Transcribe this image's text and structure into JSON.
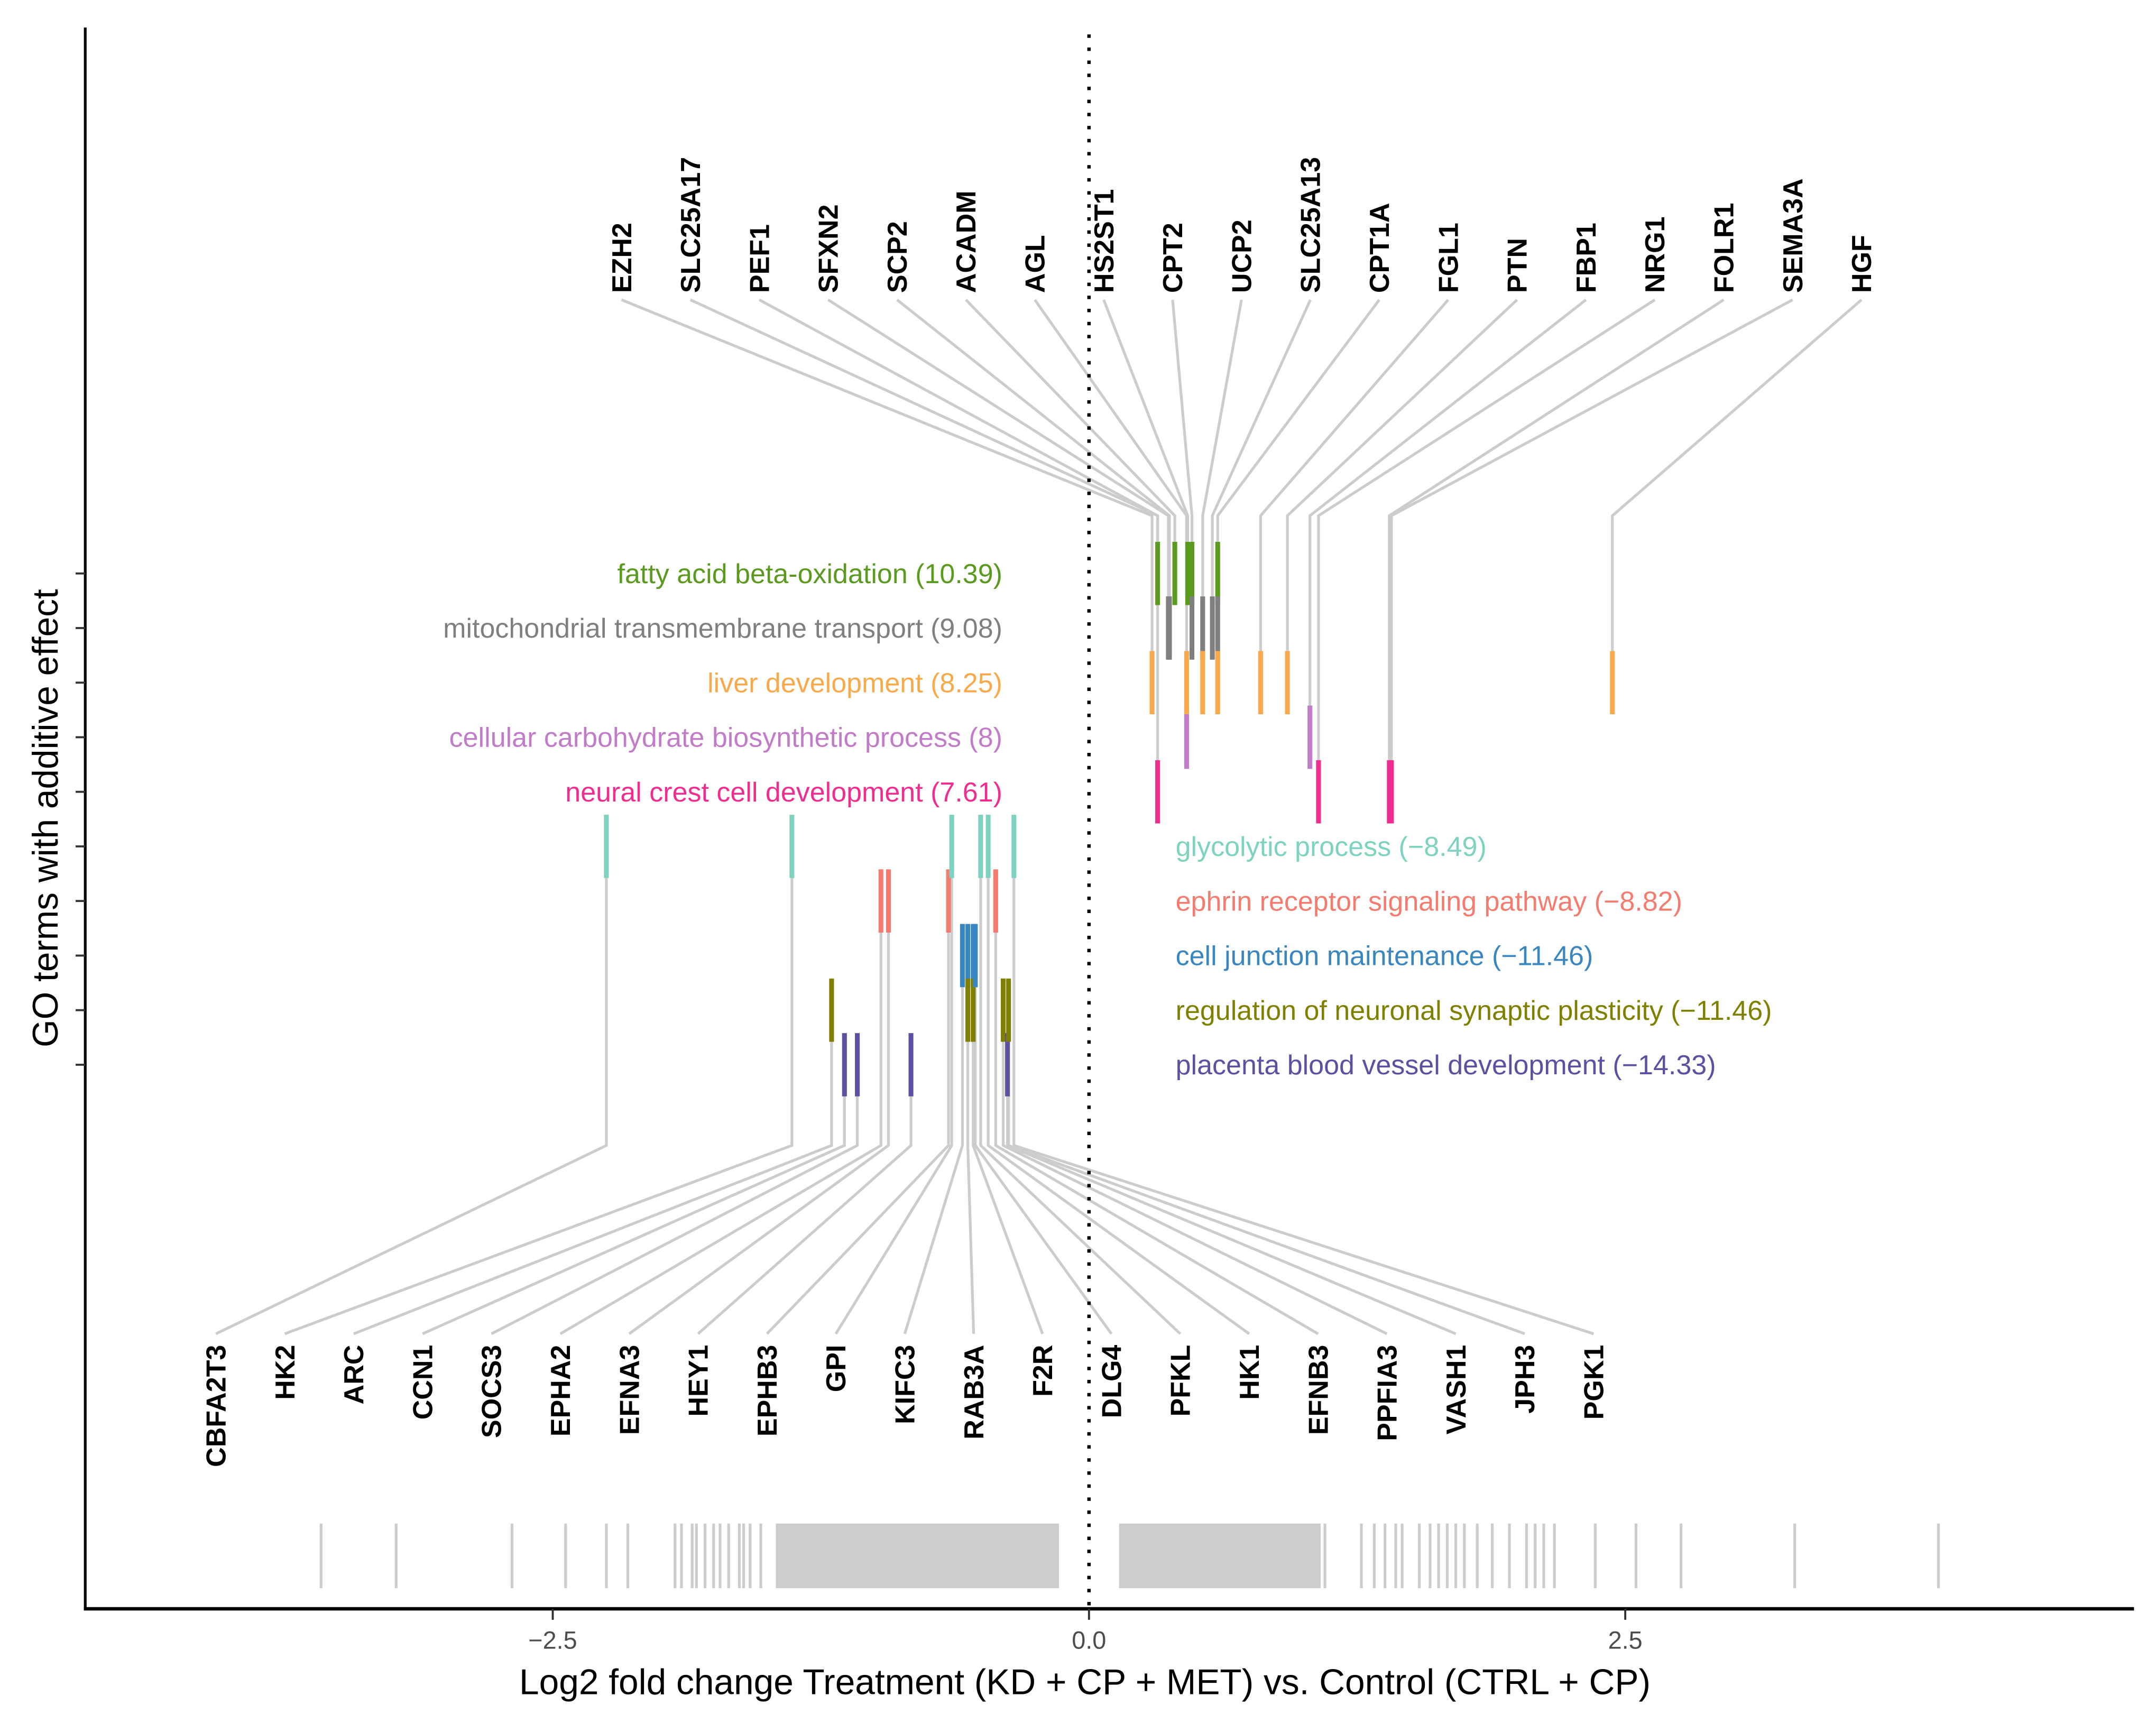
{
  "chart_data": {
    "type": "scatter",
    "title": "",
    "xlabel": "Log2 fold change Treatment (KD + CP + MET) vs. Control (CTRL + CP)",
    "ylabel": "GO terms with additive effect",
    "xlim": [
      -4.7,
      4.9
    ],
    "xticks": [
      -2.5,
      0.0,
      2.5
    ],
    "xtick_labels": [
      "−2.5",
      "0.0",
      "2.5"
    ],
    "reference_line": 0,
    "grid": false,
    "terms": [
      {
        "id": "fatty",
        "label": "fatty acid beta-oxidation (10.39)",
        "color": "#5a9a1e",
        "direction": "up"
      },
      {
        "id": "mito",
        "label": "mitochondrial transmembrane transport (9.08)",
        "color": "#7f7f7f",
        "direction": "up"
      },
      {
        "id": "liver",
        "label": "liver development (8.25)",
        "color": "#f9a94a",
        "direction": "up"
      },
      {
        "id": "carb",
        "label": "cellular carbohydrate biosynthetic process (8)",
        "color": "#c27bc8",
        "direction": "up"
      },
      {
        "id": "neural",
        "label": "neural crest cell development (7.61)",
        "color": "#f02d8f",
        "direction": "up"
      },
      {
        "id": "glyco",
        "label": "glycolytic process (−8.49)",
        "color": "#7dd3c0",
        "direction": "down"
      },
      {
        "id": "ephrin",
        "label": "ephrin receptor signaling pathway (−8.82)",
        "color": "#f47b6e",
        "direction": "down"
      },
      {
        "id": "junction",
        "label": "cell junction maintenance (−11.46)",
        "color": "#3a86c0",
        "direction": "down"
      },
      {
        "id": "synaptic",
        "label": "regulation of neuronal synaptic plasticity (−11.46)",
        "color": "#808000",
        "direction": "down"
      },
      {
        "id": "placenta",
        "label": "placenta blood vessel development (−14.33)",
        "color": "#5e4fa2",
        "direction": "down"
      }
    ],
    "genes_up": [
      {
        "name": "EZH2",
        "lfc": 0.294,
        "terms": [
          "liver"
        ]
      },
      {
        "name": "SLC25A17",
        "lfc": 0.32,
        "terms": [
          "fatty"
        ]
      },
      {
        "name": "PEF1",
        "lfc": 0.32,
        "terms": [
          "neural"
        ]
      },
      {
        "name": "SFXN2",
        "lfc": 0.37,
        "terms": [
          "mito"
        ]
      },
      {
        "name": "SCP2",
        "lfc": 0.375,
        "terms": [
          "mito"
        ]
      },
      {
        "name": "ACADM",
        "lfc": 0.4,
        "terms": [
          "fatty"
        ]
      },
      {
        "name": "AGL",
        "lfc": 0.455,
        "terms": [
          "carb",
          "liver"
        ]
      },
      {
        "name": "HS2ST1",
        "lfc": 0.46,
        "terms": [
          "fatty"
        ]
      },
      {
        "name": "CPT2",
        "lfc": 0.48,
        "terms": [
          "fatty",
          "mito"
        ]
      },
      {
        "name": "UCP2",
        "lfc": 0.53,
        "terms": [
          "mito",
          "liver"
        ]
      },
      {
        "name": "SLC25A13",
        "lfc": 0.575,
        "terms": [
          "mito"
        ]
      },
      {
        "name": "CPT1A",
        "lfc": 0.6,
        "terms": [
          "fatty",
          "mito",
          "liver"
        ]
      },
      {
        "name": "FGL1",
        "lfc": 0.8,
        "terms": [
          "liver"
        ]
      },
      {
        "name": "PTN",
        "lfc": 0.925,
        "terms": [
          "liver"
        ]
      },
      {
        "name": "FBP1",
        "lfc": 1.03,
        "terms": [
          "carb"
        ]
      },
      {
        "name": "NRG1",
        "lfc": 1.07,
        "terms": [
          "neural"
        ]
      },
      {
        "name": "FOLR1",
        "lfc": 1.4,
        "terms": [
          "neural"
        ]
      },
      {
        "name": "SEMA3A",
        "lfc": 1.41,
        "terms": [
          "neural"
        ]
      },
      {
        "name": "HGF",
        "lfc": 2.44,
        "terms": [
          "liver"
        ]
      }
    ],
    "genes_down": [
      {
        "name": "CBFA2T3",
        "lfc": -2.25,
        "terms": [
          "glyco"
        ]
      },
      {
        "name": "HK2",
        "lfc": -1.385,
        "terms": [
          "glyco"
        ]
      },
      {
        "name": "ARC",
        "lfc": -1.2,
        "terms": [
          "synaptic"
        ]
      },
      {
        "name": "CCN1",
        "lfc": -1.14,
        "terms": [
          "placenta"
        ]
      },
      {
        "name": "SOCS3",
        "lfc": -1.08,
        "terms": [
          "placenta"
        ]
      },
      {
        "name": "EPHA2",
        "lfc": -0.97,
        "terms": [
          "ephrin"
        ]
      },
      {
        "name": "EFNA3",
        "lfc": -0.935,
        "terms": [
          "ephrin"
        ]
      },
      {
        "name": "HEY1",
        "lfc": -0.83,
        "terms": [
          "placenta"
        ]
      },
      {
        "name": "EPHB3",
        "lfc": -0.655,
        "terms": [
          "ephrin"
        ]
      },
      {
        "name": "GPI",
        "lfc": -0.64,
        "terms": [
          "glyco"
        ]
      },
      {
        "name": "KIFC3",
        "lfc": -0.59,
        "terms": [
          "junction"
        ]
      },
      {
        "name": "RAB3A",
        "lfc": -0.565,
        "terms": [
          "junction",
          "synaptic"
        ]
      },
      {
        "name": "F2R",
        "lfc": -0.54,
        "terms": [
          "junction",
          "synaptic"
        ]
      },
      {
        "name": "DLG4",
        "lfc": -0.53,
        "terms": [
          "junction"
        ]
      },
      {
        "name": "PFKL",
        "lfc": -0.505,
        "terms": [
          "glyco"
        ]
      },
      {
        "name": "HK1",
        "lfc": -0.47,
        "terms": [
          "glyco"
        ]
      },
      {
        "name": "EFNB3",
        "lfc": -0.435,
        "terms": [
          "ephrin"
        ]
      },
      {
        "name": "PPFIA3",
        "lfc": -0.4,
        "terms": [
          "synaptic"
        ]
      },
      {
        "name": "VASH1",
        "lfc": -0.38,
        "terms": [
          "placenta"
        ]
      },
      {
        "name": "JPH3",
        "lfc": -0.375,
        "terms": [
          "synaptic"
        ]
      },
      {
        "name": "PGK1",
        "lfc": -0.35,
        "terms": [
          "glyco"
        ]
      }
    ],
    "rug_values": [
      -3.58,
      -3.23,
      -2.69,
      -2.44,
      -2.25,
      -2.15,
      -1.93,
      -1.9,
      -1.85,
      -1.83,
      -1.79,
      -1.75,
      -1.72,
      -1.68,
      -1.63,
      -1.61,
      -1.58,
      -1.53,
      1.1,
      1.27,
      1.33,
      1.38,
      1.43,
      1.46,
      1.54,
      1.59,
      1.63,
      1.67,
      1.71,
      1.75,
      1.81,
      1.88,
      1.96,
      2.04,
      2.08,
      2.12,
      2.17,
      2.36,
      2.55,
      2.76,
      3.29,
      3.96
    ],
    "rug_dense_ranges": [
      [
        -1.46,
        -0.14
      ],
      [
        0.14,
        1.08
      ]
    ]
  }
}
